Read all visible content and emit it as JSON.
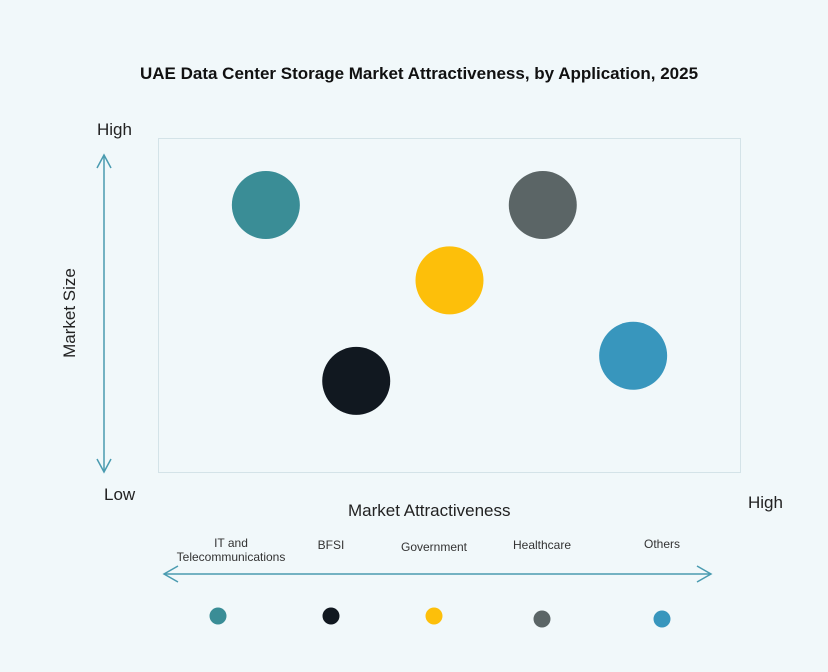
{
  "chart_data": {
    "type": "scatter",
    "title": "UAE Data Center Storage Market Attractiveness,  by Application, 2025",
    "xlabel": "Market Attractiveness",
    "ylabel": "Market Size",
    "x_low": "Low",
    "x_high": "High",
    "y_high": "High",
    "xlim": [
      0,
      100
    ],
    "ylim": [
      0,
      100
    ],
    "grid": false,
    "legend_placement": "bottom",
    "series": [
      {
        "name": "IT and Telecommunications",
        "x": 18.5,
        "y": 80,
        "color": "#3a8d96"
      },
      {
        "name": "BFSI",
        "x": 34,
        "y": 27.5,
        "color": "#111820"
      },
      {
        "name": "Government",
        "x": 50,
        "y": 57.5,
        "color": "#fdbf0a"
      },
      {
        "name": "Healthcare",
        "x": 66,
        "y": 80,
        "color": "#5b6566"
      },
      {
        "name": "Others",
        "x": 81.5,
        "y": 35,
        "color": "#3896bd"
      }
    ],
    "legend_labels": [
      "IT and\nTelecommunications",
      "BFSI",
      "Government",
      "Healthcare",
      "Others"
    ]
  }
}
